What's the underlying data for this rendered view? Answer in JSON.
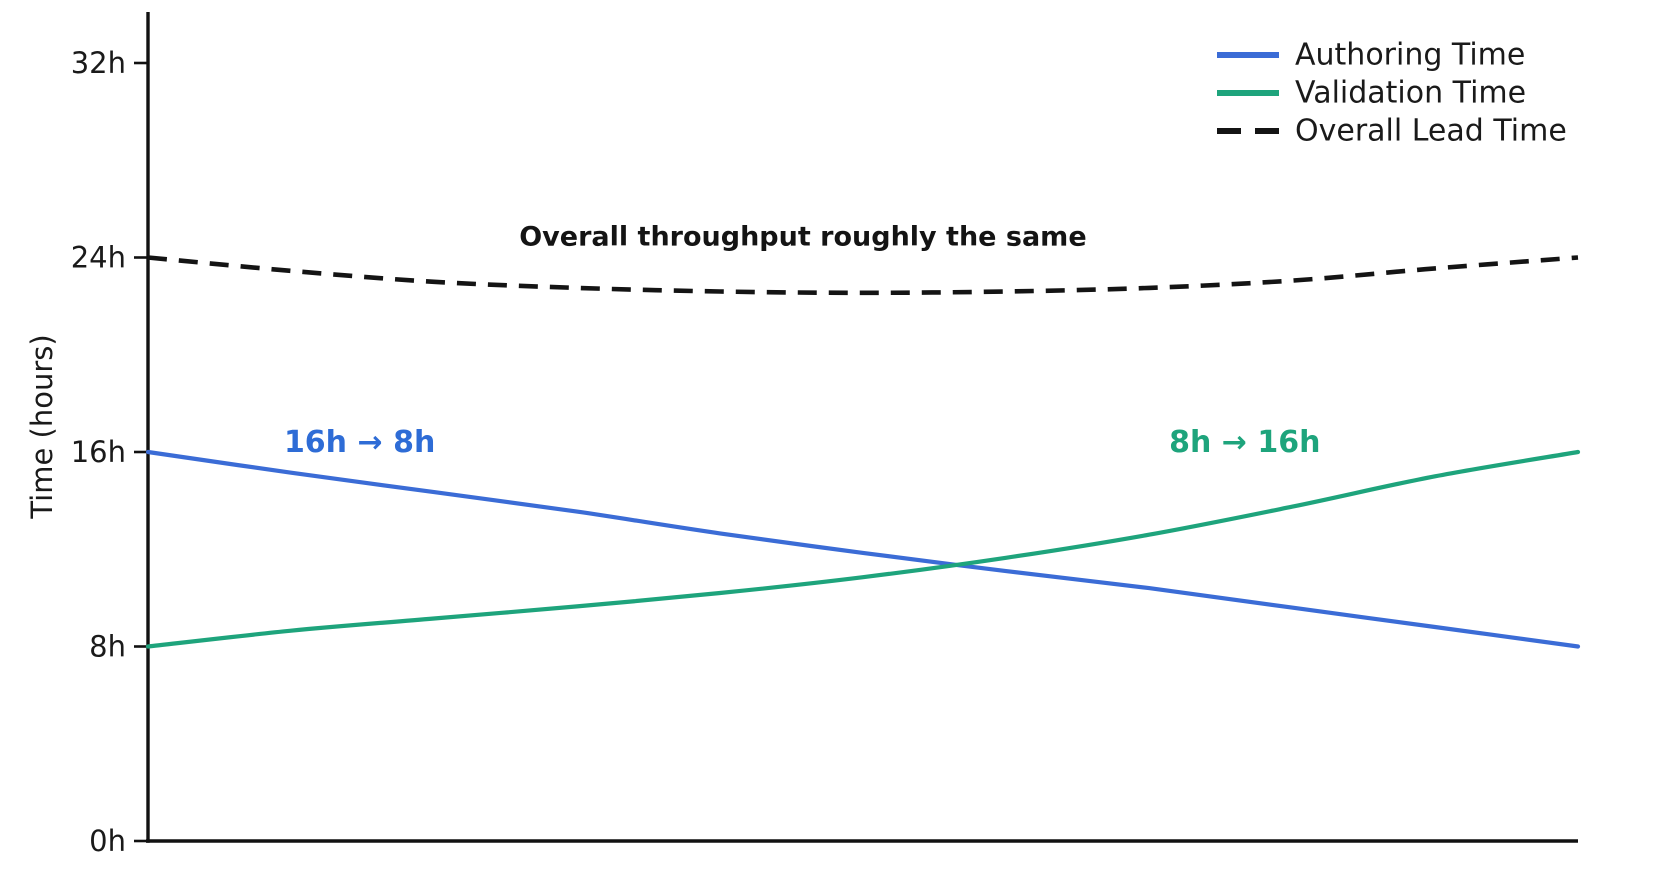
{
  "chart_data": {
    "type": "line",
    "title": "",
    "ylabel": "Time (hours)",
    "ylim": [
      0,
      33.5
    ],
    "grid": false,
    "legend_position": "top-right",
    "x_ticks_visible": false,
    "yticks": [
      {
        "value": 0,
        "label": "0h"
      },
      {
        "value": 8,
        "label": "8h"
      },
      {
        "value": 16,
        "label": "16h"
      },
      {
        "value": 24,
        "label": "24h"
      },
      {
        "value": 32,
        "label": "32h"
      }
    ],
    "x": [
      0,
      0.1,
      0.2,
      0.3,
      0.4,
      0.5,
      0.6,
      0.7,
      0.8,
      0.9,
      1.0
    ],
    "series": [
      {
        "name": "Authoring Time",
        "color": "#3B6CD6",
        "style": "solid",
        "start_value_h": 16,
        "end_value_h": 8,
        "values": [
          16,
          15.15,
          14.35,
          13.55,
          12.65,
          11.85,
          11.1,
          10.4,
          9.6,
          8.8,
          8
        ]
      },
      {
        "name": "Validation Time",
        "color": "#1EA47C",
        "style": "solid",
        "start_value_h": 8,
        "end_value_h": 16,
        "values": [
          8,
          8.65,
          9.15,
          9.65,
          10.2,
          10.85,
          11.65,
          12.6,
          13.75,
          15.0,
          16
        ]
      },
      {
        "name": "Overall Lead Time",
        "color": "#141414",
        "style": "dashed",
        "start_value_h": 24,
        "end_value_h": 24,
        "values": [
          24,
          23.45,
          23.0,
          22.75,
          22.6,
          22.55,
          22.6,
          22.75,
          23.05,
          23.55,
          24
        ]
      }
    ],
    "annotations": [
      {
        "text": "16h → 8h",
        "x": 0.148,
        "y": 16.4,
        "color": "#2E6CD6",
        "bold": true,
        "size": 30
      },
      {
        "text": "8h → 16h",
        "x": 0.767,
        "y": 16.4,
        "color": "#1EA47C",
        "bold": true,
        "size": 30
      },
      {
        "text": "Overall throughput roughly the same",
        "x": 0.458,
        "y": 24.85,
        "color": "#141414",
        "bold": true,
        "size": 27
      }
    ]
  },
  "colors": {
    "background": "#ffffff",
    "axis": "#111111",
    "tick_text": "#1a1a1a",
    "legend_text": "#1a1a1a"
  }
}
